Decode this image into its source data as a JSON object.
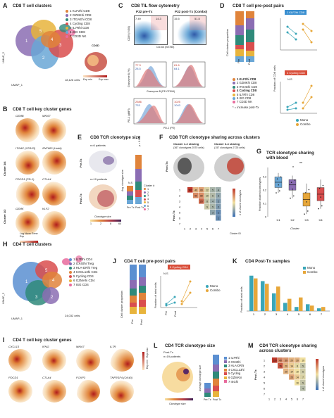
{
  "figure": {
    "A": {
      "letter": "A",
      "title": "CD8 T cell clusters",
      "ylabel": "UMAP_2",
      "xlabel": "UMAP_1",
      "cells": "18,126 cells",
      "legend": [
        "1 KLF2hi CD8",
        "2 GZMKhi CD8",
        "3 ITGAEhi CD8",
        "4 Cycling CD8",
        "5 IL7Rhi CD8",
        "6 ISG CD8",
        "7 CD3D NK"
      ],
      "inset_gene": "CD3D",
      "exp_min": "Exp min",
      "exp_max": "Exp max"
    },
    "B": {
      "letter": "B",
      "title": "CD8 T cell key cluster genes",
      "genes": [
        "GZMB",
        "MKI67",
        "ITGAE (CD103)",
        "ZNF683 (Hobit)",
        "PDCD1 (PD-1)",
        "CTLA4",
        "GZMK",
        "KLF2"
      ],
      "row_labels": [
        "Cluster 3/4",
        "Cluster 1/2"
      ],
      "scale": "Log Norm Gene Exp",
      "scale_min": "Exp min",
      "scale_max": "Exp max"
    },
    "C": {
      "letter": "C",
      "title": "CD8 TIL flow cytometry",
      "col1": "P32 pre-Tx",
      "col2": "P32 post-Tx (Combo)",
      "row1_y": "CD69 (V450)",
      "row1_x": "CD103 (BV785)",
      "row2_y": "Granzyme B (%)",
      "row2_x": "Granzyme B (PE-CF594)",
      "row3_y": "PD-1 (gMFI)",
      "row3_x": "PD-1 (PE)",
      "q_pre": [
        "7.49",
        "14.3"
      ],
      "q_post": [
        "15.5",
        "51.5"
      ],
      "gzb_pre": [
        "77.3",
        "28.5"
      ],
      "gzb_post": [
        "81.6",
        "64.1"
      ],
      "pd1_pre": [
        "2586",
        "733"
      ],
      "pd1_post": [
        "1025",
        "1043"
      ]
    },
    "D": {
      "letter": "D",
      "title": "CD8 T cell pre-post pairs",
      "ylabel": "Cell cluster proportion",
      "xticks": [
        "Pre",
        "Post"
      ],
      "legend": [
        "1 KLF2hi CD8",
        "2 GZMKhi CD8",
        "3 ITGAEhi CD8",
        "4 Cycling CD8",
        "5 IL7Rhi CD8",
        "6 ISG CD8",
        "7 CD3D NK"
      ],
      "note": "* = increase post-Tx",
      "sub1": "1 KLF2hi CD8",
      "sub2": "4 Cycling CD8",
      "ns": "N.S",
      "yright": "Fraction of CD8 cells",
      "series": [
        "Mono",
        "Combo"
      ]
    },
    "E": {
      "letter": "E",
      "title": "CD8 TCR clonotype size",
      "pre_label": "Pre-Tx",
      "post_label": "Post-Tx",
      "n_pre": "n=6 patients",
      "n_post": "n=19 patients",
      "ylabel": "Avg. clonotype size",
      "p": "p = 0.003",
      "ns": "N.S",
      "xticks": [
        "Pre Tx",
        "Post Tx"
      ],
      "size_label": "Clonotype size",
      "size_ticks": [
        "1",
        "2",
        "8",
        "64"
      ],
      "cluster_label": "Cluster #",
      "clusters": [
        "1",
        "2",
        "3",
        "4",
        "5",
        "6",
        "7"
      ]
    },
    "F": {
      "letter": "F",
      "title": "CD8 TCR clonotype sharing across clusters",
      "c12": "Cluster 1-2 sharing",
      "c12n": "(367 clonotypes 2570 cells)",
      "c34": "Cluster 3-4 sharing",
      "c34n": "(157 clonotypes 2725 cells)",
      "row_label": "Post-Tx",
      "ylab": "Cluster ID",
      "xlab": "Cluster ID",
      "scale": "# of shared clonotypes",
      "ids": [
        "1",
        "2",
        "3",
        "4",
        "5",
        "6",
        "7"
      ],
      "matrix": [
        [
          null,
          367,
          40,
          60,
          12,
          5,
          4
        ],
        [
          null,
          null,
          90,
          80,
          10,
          6,
          3
        ],
        [
          null,
          null,
          null,
          157,
          8,
          4,
          2
        ],
        [
          null,
          null,
          null,
          null,
          9,
          5,
          2
        ],
        [
          null,
          null,
          null,
          null,
          null,
          3,
          1
        ],
        [
          null,
          null,
          null,
          null,
          null,
          null,
          1
        ],
        [
          null,
          null,
          null,
          null,
          null,
          null,
          null
        ]
      ]
    },
    "G": {
      "letter": "G",
      "title": "TCR clonotype sharing with blood",
      "ylabel": "Fraction shared clonotypes",
      "xlabel": "Cluster",
      "xticks": [
        "C1",
        "C2",
        "C3",
        "C4"
      ],
      "sig": [
        "*",
        "**"
      ],
      "yticks": [
        "0",
        "0.1",
        "0.2",
        "0.3"
      ]
    },
    "H": {
      "letter": "H",
      "title": "CD4 T cell clusters",
      "ylabel": "UMAP_2",
      "xlabel": "UMAP_1",
      "cells": "24,032 cells",
      "legend": [
        "1 IL7Rhi CD4",
        "2 OX40hi Treg",
        "3 HLA-DRhi Treg",
        "4 CXCL13hi CD4",
        "5 Cycling CD4",
        "6 GZMAhi CD4",
        "7 ISG CD4"
      ]
    },
    "I": {
      "letter": "I",
      "title": "CD4 T cell key cluster genes",
      "genes": [
        "CXCL13",
        "IFNG",
        "MKI67",
        "IL7R",
        "PDCD1",
        "CTLA4",
        "FOXP3",
        "TNFRSF4 (OX40)"
      ],
      "scale_min": "Exp min",
      "scale_max": "Exp max"
    },
    "J": {
      "letter": "J",
      "title": "CD4 T cell pre-post pairs",
      "ylabel": "Cell cluster proportion",
      "xticks": [
        "Pre",
        "Post"
      ],
      "sub": "5 Cycling CD4",
      "ns": "N.S",
      "yright": "Fraction of total cells",
      "series": [
        "Mono",
        "Combo"
      ]
    },
    "K": {
      "letter": "K",
      "title": "CD4 Post-Tx samples",
      "ylabel": "Fraction of total cells",
      "xticks": [
        "1",
        "2",
        "3",
        "4",
        "5",
        "6",
        "7"
      ],
      "series": [
        "Mono",
        "Combo"
      ]
    },
    "L": {
      "letter": "L",
      "title": "CD4 TCR clonotype size",
      "label": "Post-Tx",
      "n": "n=19 patients",
      "ylabel": "Average clonotype size",
      "xticks": [
        "Pre Tx",
        "Post Tx"
      ],
      "size_label": "Clonotype size",
      "legend": [
        "1 IL7Rhi",
        "2 OX40hi",
        "3 HLA-DRhi",
        "4 CXCL13hi",
        "5 Cycling",
        "6 GZMAhi",
        "7 ISGhi"
      ]
    },
    "M": {
      "letter": "M",
      "title": "CD4 TCR clonotype sharing across clusters",
      "row_label": "Post-Tx",
      "ids": [
        "1",
        "2",
        "3",
        "4",
        "5",
        "6",
        "7"
      ],
      "scale": "# of shared clonotypes",
      "matrix": [
        [
          null,
          120,
          40,
          30,
          20,
          20,
          10
        ],
        [
          null,
          null,
          76,
          20,
          14,
          8,
          5
        ],
        [
          null,
          null,
          null,
          20,
          14,
          10,
          6
        ],
        [
          null,
          null,
          null,
          null,
          25,
          14,
          7
        ],
        [
          null,
          null,
          null,
          null,
          null,
          10,
          5
        ],
        [
          null,
          null,
          null,
          null,
          null,
          null,
          4
        ],
        [
          null,
          null,
          null,
          null,
          null,
          null,
          null
        ]
      ]
    },
    "colors": {
      "c1": "#e0843b",
      "c2": "#8b6db3",
      "c3": "#2f8a7a",
      "c4": "#d94e4e",
      "c5": "#e8b43c",
      "c6": "#6aa7d6",
      "c7": "#e86b9d",
      "mono": "#3aa6b8",
      "combo": "#e7a73a",
      "accent_blue": "#3a8fd0",
      "accent_red": "#d94e3a"
    }
  }
}
